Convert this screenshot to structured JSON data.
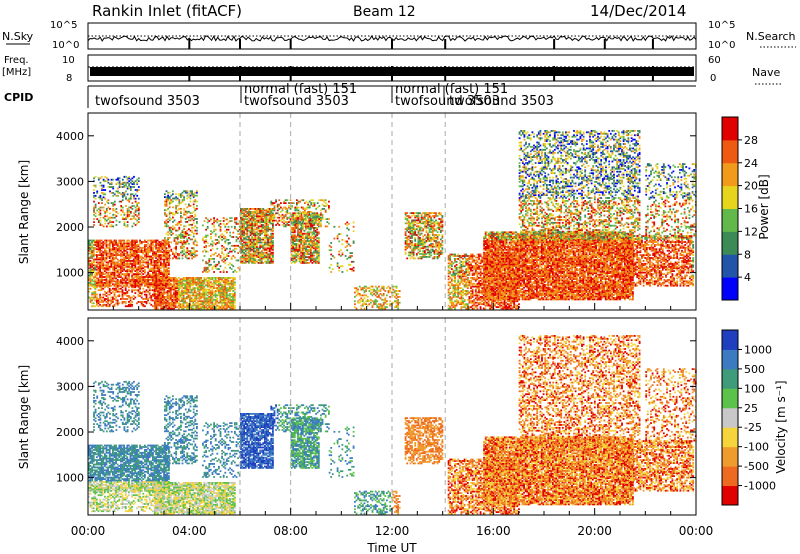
{
  "header": {
    "station": "Rankin Inlet (fitACF)",
    "beam": "Beam 12",
    "date": "14/Dec/2014"
  },
  "status_panels": {
    "nsky_label": "N.Sky",
    "nsky_ticks": [
      "10^5",
      "10^0"
    ],
    "nsearch_label": "N.Search",
    "freq_label_1": "Freq.",
    "freq_label_2": "[MHz]",
    "freq_ticks": [
      "10",
      "8"
    ],
    "nave_label": "Nave",
    "nave_ticks": [
      "60",
      "0"
    ],
    "cpid_label": "CPID",
    "cpid_entries": [
      {
        "hour": 0.4,
        "name": "twofsound 3503"
      },
      {
        "hour": 6.0,
        "name": "normal (fast) 151"
      },
      {
        "hour": 6.0,
        "name": "twofsound 3503"
      },
      {
        "hour": 12.0,
        "name": "normal (fast) 151"
      },
      {
        "hour": 12.0,
        "name": "twofsound 3503"
      },
      {
        "hour": 14.0,
        "name": "twofsound 3503"
      }
    ]
  },
  "chart_data": [
    {
      "type": "heatmap",
      "name": "power",
      "ylabel": "Slant Range [km]",
      "yticks": [
        "1000",
        "2000",
        "3000",
        "4000"
      ],
      "colorbar_label": "Power [dB]",
      "colorbar_ticks": [
        "4",
        "8",
        "12",
        "16",
        "20",
        "24",
        "28"
      ],
      "colors": [
        "#0000ff",
        "#2255aa",
        "#3c8a55",
        "#62b84a",
        "#e6d41d",
        "#f29b1a",
        "#ef5a12",
        "#e10000"
      ]
    },
    {
      "type": "heatmap",
      "name": "velocity",
      "ylabel": "Slant Range [km]",
      "yticks": [
        "1000",
        "2000",
        "3000",
        "4000"
      ],
      "xticks": [
        "00:00",
        "04:00",
        "08:00",
        "12:00",
        "16:00",
        "20:00",
        "00:00"
      ],
      "xlabel": "Time UT",
      "colorbar_label": "Velocity [m s⁻¹]",
      "colorbar_ticks": [
        "1000",
        "500",
        "100",
        "25",
        "-25",
        "-100",
        "-500",
        "-1000"
      ],
      "colors": [
        "#1f3fbf",
        "#3c7ac2",
        "#3f9c7a",
        "#5dc24a",
        "#c8c8c8",
        "#f5d43c",
        "#f09b2d",
        "#ee6a20",
        "#e10000"
      ]
    }
  ]
}
